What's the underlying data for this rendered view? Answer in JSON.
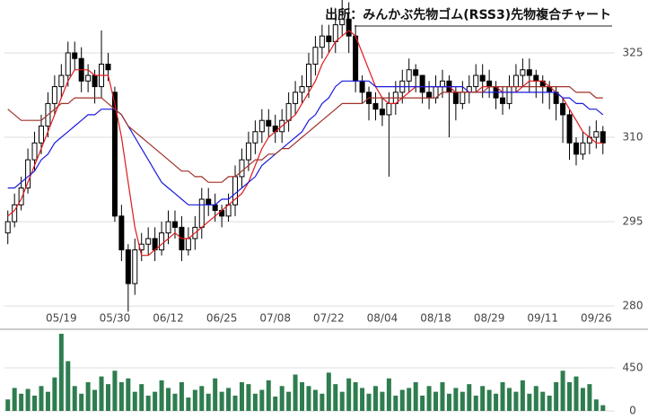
{
  "chart_data": {
    "type": "candlestick",
    "title": "出所：みんかぶ先物ゴム(RSS3)先物複合チャート",
    "categories": [
      null,
      null,
      null,
      null,
      null,
      null,
      null,
      null,
      "05/19",
      null,
      null,
      null,
      null,
      null,
      null,
      null,
      "05/30",
      null,
      null,
      null,
      null,
      null,
      null,
      null,
      "06/12",
      null,
      null,
      null,
      null,
      null,
      null,
      null,
      "06/25",
      null,
      null,
      null,
      null,
      null,
      null,
      null,
      "07/08",
      null,
      null,
      null,
      null,
      null,
      null,
      null,
      "07/22",
      null,
      null,
      null,
      null,
      null,
      null,
      null,
      "08/04",
      null,
      null,
      null,
      null,
      null,
      null,
      null,
      "08/18",
      null,
      null,
      null,
      null,
      null,
      null,
      null,
      "08/29",
      null,
      null,
      null,
      null,
      null,
      null,
      null,
      "09/11",
      null,
      null,
      null,
      null,
      null,
      null,
      null,
      "09/26",
      null
    ],
    "open": [
      293,
      295,
      298,
      301,
      306,
      309,
      312,
      316,
      319,
      321,
      325,
      324,
      320,
      321,
      319,
      323,
      318,
      296,
      290,
      284,
      290,
      291,
      292,
      290,
      293,
      295,
      294,
      290,
      292,
      294,
      299,
      298,
      297,
      296,
      298,
      303,
      306,
      309,
      311,
      313,
      312,
      311,
      313,
      316,
      318,
      319,
      323,
      326,
      328,
      327,
      330,
      331,
      328,
      320,
      318,
      316,
      315,
      314,
      316,
      318,
      320,
      322,
      321,
      318,
      317,
      319,
      320,
      318,
      316,
      318,
      319,
      321,
      320,
      319,
      317,
      316,
      319,
      321,
      322,
      321,
      320,
      319,
      318,
      316,
      314,
      309,
      307,
      309,
      310,
      311
    ],
    "high": [
      297,
      300,
      303,
      308,
      311,
      314,
      318,
      321,
      323,
      327,
      327,
      326,
      323,
      322,
      329,
      325,
      319,
      298,
      291,
      292,
      293,
      294,
      294,
      295,
      297,
      297,
      296,
      294,
      296,
      301,
      301,
      300,
      298,
      300,
      305,
      308,
      311,
      313,
      315,
      315,
      314,
      315,
      318,
      320,
      321,
      325,
      328,
      330,
      330,
      333,
      335,
      334,
      330,
      321,
      319,
      318,
      317,
      318,
      320,
      322,
      324,
      323,
      321,
      320,
      321,
      322,
      321,
      319,
      320,
      321,
      323,
      323,
      322,
      320,
      319,
      321,
      323,
      324,
      324,
      322,
      321,
      320,
      319,
      317,
      315,
      310,
      311,
      312,
      313,
      312
    ],
    "low": [
      291,
      294,
      297,
      300,
      304,
      307,
      310,
      314,
      317,
      319,
      322,
      318,
      318,
      316,
      317,
      320,
      295,
      288,
      279,
      282,
      288,
      289,
      288,
      289,
      291,
      292,
      288,
      289,
      290,
      292,
      296,
      295,
      294,
      295,
      296,
      301,
      304,
      307,
      309,
      310,
      309,
      309,
      311,
      314,
      316,
      317,
      321,
      324,
      325,
      325,
      328,
      325,
      318,
      316,
      313,
      313,
      312,
      303,
      314,
      316,
      318,
      318,
      316,
      315,
      316,
      317,
      310,
      313,
      315,
      316,
      318,
      317,
      317,
      315,
      314,
      315,
      318,
      319,
      318,
      317,
      316,
      315,
      313,
      309,
      306,
      305,
      306,
      307,
      308,
      307
    ],
    "close": [
      295,
      298,
      301,
      306,
      309,
      312,
      316,
      319,
      321,
      325,
      324,
      320,
      321,
      319,
      323,
      322,
      296,
      290,
      284,
      290,
      291,
      292,
      290,
      293,
      295,
      294,
      290,
      292,
      294,
      299,
      298,
      297,
      296,
      298,
      303,
      306,
      309,
      311,
      313,
      312,
      311,
      313,
      316,
      318,
      319,
      323,
      326,
      328,
      327,
      330,
      331,
      328,
      320,
      318,
      316,
      315,
      314,
      316,
      318,
      320,
      322,
      321,
      318,
      317,
      319,
      320,
      318,
      316,
      318,
      319,
      321,
      320,
      319,
      317,
      316,
      319,
      321,
      322,
      321,
      320,
      319,
      318,
      316,
      314,
      309,
      307,
      309,
      310,
      311,
      309
    ],
    "series": [
      {
        "color": "#e0191d",
        "values": [
          296,
          297,
          299,
          302,
          305,
          308,
          311,
          314,
          317,
          320,
          322,
          322,
          322,
          321,
          321,
          321,
          316,
          310,
          302,
          294,
          289,
          289,
          290,
          291,
          292,
          293,
          292,
          292,
          293,
          294,
          295,
          296,
          297,
          298,
          299,
          300,
          302,
          305,
          308,
          310,
          311,
          312,
          313,
          314,
          316,
          318,
          320,
          323,
          325,
          327,
          328,
          329,
          328,
          325,
          322,
          319,
          317,
          316,
          316,
          317,
          318,
          319,
          319,
          319,
          319,
          319,
          319,
          318,
          318,
          318,
          318,
          319,
          319,
          319,
          318,
          318,
          318,
          319,
          320,
          320,
          320,
          319,
          318,
          317,
          315,
          313,
          311,
          310,
          309,
          309
        ]
      },
      {
        "color": "#1a1adc",
        "values": [
          301,
          301,
          302,
          303,
          304,
          306,
          307,
          309,
          310,
          311,
          312,
          313,
          314,
          314,
          315,
          315,
          315,
          314,
          312,
          310,
          308,
          306,
          304,
          302,
          301,
          300,
          299,
          298,
          298,
          298,
          298,
          298,
          299,
          299,
          300,
          301,
          302,
          303,
          305,
          306,
          307,
          308,
          309,
          310,
          311,
          313,
          314,
          316,
          317,
          319,
          320,
          320,
          320,
          320,
          320,
          319,
          319,
          319,
          319,
          319,
          319,
          319,
          319,
          319,
          319,
          319,
          319,
          319,
          319,
          318,
          318,
          318,
          318,
          318,
          318,
          318,
          318,
          318,
          318,
          318,
          318,
          318,
          318,
          317,
          317,
          316,
          316,
          315,
          315,
          314
        ]
      },
      {
        "color": "#a0302a",
        "values": [
          315,
          314,
          313,
          313,
          313,
          313,
          314,
          315,
          316,
          316,
          317,
          317,
          317,
          317,
          317,
          316,
          315,
          314,
          312,
          311,
          310,
          309,
          308,
          307,
          306,
          305,
          304,
          304,
          303,
          303,
          302,
          302,
          302,
          303,
          303,
          304,
          305,
          306,
          306,
          307,
          307,
          308,
          308,
          309,
          310,
          311,
          312,
          313,
          314,
          315,
          316,
          316,
          316,
          316,
          317,
          317,
          317,
          317,
          317,
          317,
          317,
          317,
          317,
          317,
          317,
          318,
          318,
          318,
          318,
          318,
          318,
          318,
          319,
          319,
          319,
          319,
          319,
          319,
          319,
          319,
          319,
          319,
          319,
          319,
          319,
          318,
          318,
          318,
          317,
          317
        ]
      }
    ],
    "up_color": "#ffffff",
    "down_color": "#000000",
    "ylim": [
      276.2,
      334.4
    ],
    "yticks": [
      280,
      295,
      310,
      325
    ],
    "grid": true,
    "volume": {
      "color": "#2e7d4f",
      "ylim": [
        0,
        825
      ],
      "yticks": [
        0,
        450
      ],
      "values": [
        120,
        240,
        180,
        230,
        160,
        260,
        200,
        350,
        806,
        520,
        260,
        180,
        300,
        220,
        360,
        280,
        420,
        300,
        340,
        200,
        280,
        160,
        200,
        320,
        240,
        180,
        300,
        140,
        220,
        260,
        180,
        340,
        200,
        240,
        160,
        300,
        280,
        180,
        220,
        320,
        150,
        260,
        200,
        380,
        300,
        260,
        220,
        180,
        400,
        280,
        200,
        340,
        300,
        240,
        180,
        260,
        200,
        340,
        160,
        220,
        240,
        300,
        160,
        260,
        200,
        300,
        180,
        240,
        200,
        280,
        160,
        260,
        220,
        180,
        300,
        240,
        200,
        320,
        180,
        260,
        200,
        160,
        300,
        420,
        300,
        360,
        240,
        280,
        120,
        60
      ]
    }
  }
}
